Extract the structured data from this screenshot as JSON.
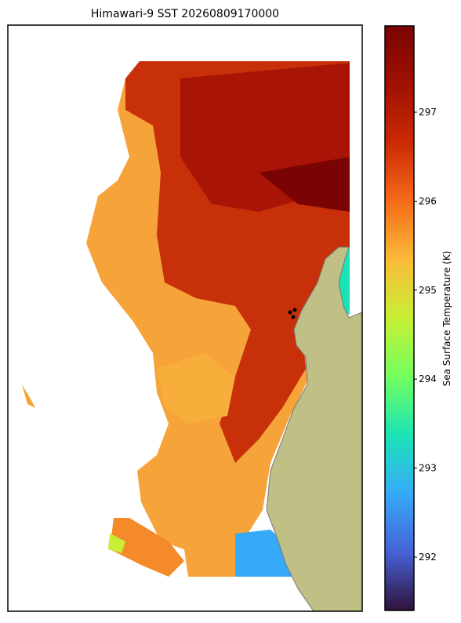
{
  "title": "Himawari-9 SST 20260809170000",
  "colorbar": {
    "label": "Sea Surface Temperature (K)",
    "lim": [
      291.4,
      297.97
    ],
    "ticks": [
      292,
      293,
      294,
      295,
      296,
      297
    ]
  }
}
